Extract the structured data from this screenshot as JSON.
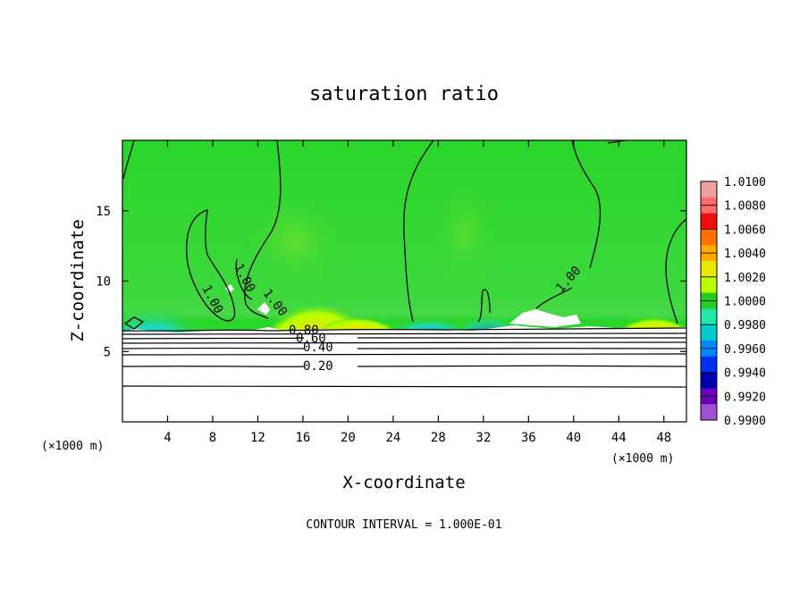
{
  "chart_data": {
    "type": "heatmap",
    "title": "saturation ratio",
    "xlabel": "X-coordinate",
    "ylabel": "Z-coordinate",
    "x_unit": "(×1000 m)",
    "z_unit": "(×1000 m)",
    "xlim": [
      0,
      50
    ],
    "ylim": [
      0,
      20
    ],
    "x_ticks": [
      4,
      8,
      12,
      16,
      20,
      24,
      28,
      32,
      36,
      40,
      44,
      48
    ],
    "y_ticks": [
      5,
      10,
      15
    ],
    "footer": "CONTOUR INTERVAL = 1.000E-01",
    "colorbar": {
      "levels": [
        "1.0100",
        "1.0080",
        "1.0060",
        "1.0040",
        "1.0020",
        "1.0000",
        "0.9980",
        "0.9960",
        "0.9940",
        "0.9920",
        "0.9900"
      ],
      "colors": [
        "#f0a0a0",
        "#ff6a6a",
        "#ee1010",
        "#ff7000",
        "#ffa800",
        "#e8e800",
        "#b8ff00",
        "#22cc22",
        "#22e8a8",
        "#00cccc",
        "#0088ff",
        "#0030ee",
        "#0000b0",
        "#6a00b8",
        "#a050d0"
      ]
    },
    "contour_labels": [
      "1.00",
      "1.00",
      "1.00",
      "1.00",
      "0.80",
      "0.60",
      "0.40",
      "0.20"
    ],
    "contour_label_values": [
      1.0,
      1.0,
      1.0,
      1.0,
      0.8,
      0.6,
      0.4,
      0.2
    ],
    "cloud_base_z": 6.7,
    "lower_contour_levels": [
      0.2,
      0.3,
      0.4,
      0.5,
      0.6,
      0.7,
      0.8,
      0.9
    ],
    "lower_contour_z": [
      2.5,
      4.0,
      4.9,
      5.3,
      5.6,
      5.9,
      6.2,
      6.5
    ]
  }
}
